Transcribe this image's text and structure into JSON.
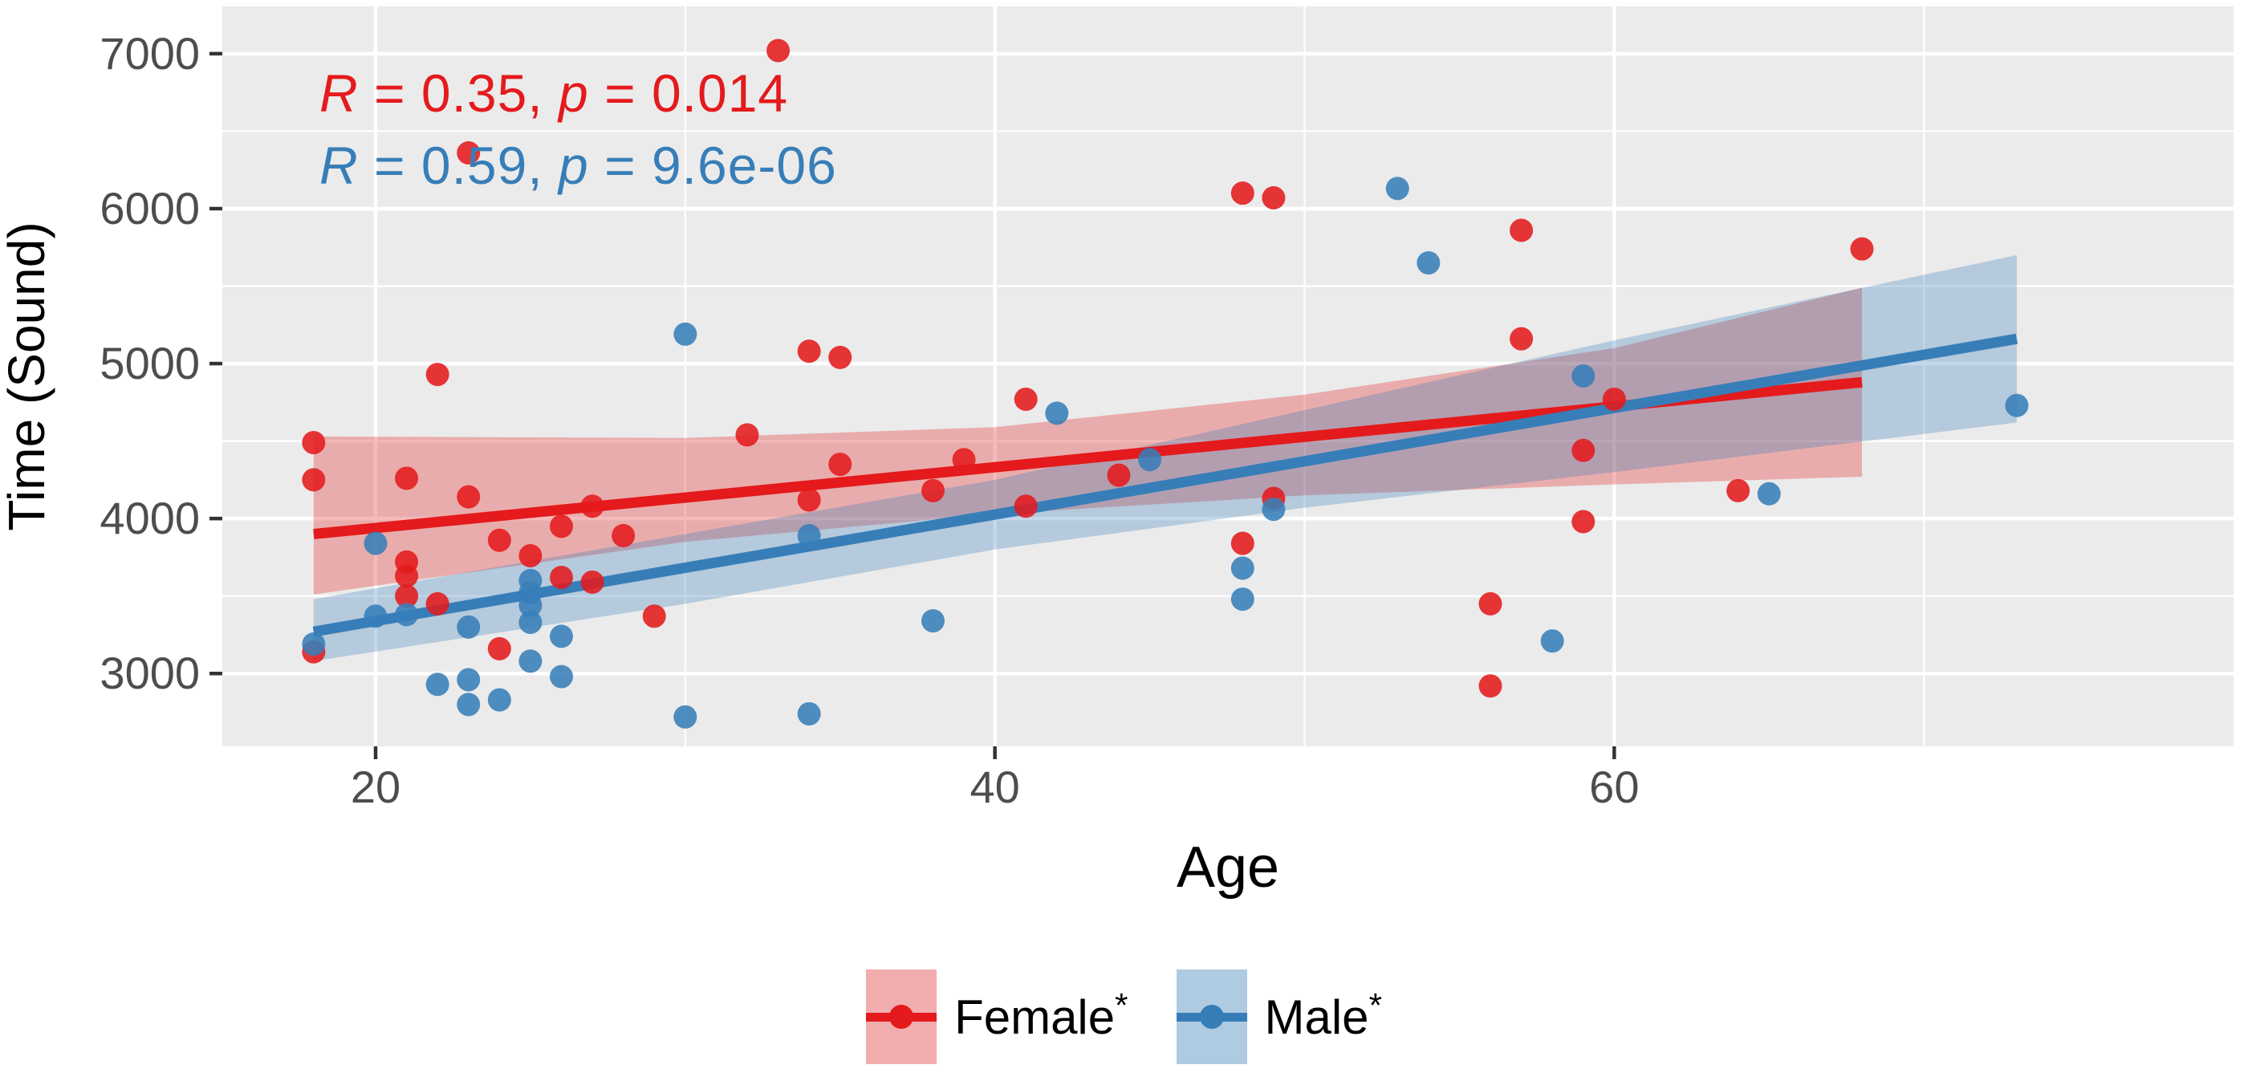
{
  "chart_data": {
    "type": "scatter",
    "title": "",
    "xlabel": "Age",
    "ylabel": "Time (Sound)",
    "xlim": [
      15.05,
      80.0
    ],
    "ylim": [
      2530,
      7305
    ],
    "x_ticks": [
      20,
      40,
      60
    ],
    "x_minor": [
      30,
      50,
      70
    ],
    "y_ticks": [
      3000,
      4000,
      5000,
      6000,
      7000
    ],
    "y_minor": [
      3500,
      4500,
      5500,
      6500
    ],
    "grid": "on",
    "panel_bg": "#EBEBEB",
    "grid_color": "#FFFFFF",
    "tick_label_color": "#4D4D4D",
    "legend_position": "bottom",
    "annotations": [
      {
        "r": "R",
        "r_rest": " = 0.35, ",
        "p": "p",
        "p_rest": " = 0.014",
        "color": "#E41A1C"
      },
      {
        "r": "R",
        "r_rest": " = 0.59, ",
        "p": "p",
        "p_rest": " = 9.6e-06",
        "color": "#377EB8"
      }
    ],
    "series": [
      {
        "name": "Female",
        "color": "#E41A1C",
        "ribbon_fill": "#E41A1C",
        "trend": {
          "x": [
            18,
            68
          ],
          "y": [
            3900,
            4880
          ]
        },
        "ribbon_upper": [
          [
            18,
            4530
          ],
          [
            30,
            4520
          ],
          [
            40,
            4590
          ],
          [
            50,
            4800
          ],
          [
            60,
            5100
          ],
          [
            68,
            5490
          ]
        ],
        "ribbon_lower": [
          [
            18,
            3510
          ],
          [
            30,
            3850
          ],
          [
            40,
            4030
          ],
          [
            50,
            4150
          ],
          [
            60,
            4220
          ],
          [
            68,
            4270
          ]
        ],
        "points": [
          [
            33,
            7020
          ],
          [
            23,
            6360
          ],
          [
            48,
            6100
          ],
          [
            49,
            6070
          ],
          [
            57,
            5860
          ],
          [
            68,
            5740
          ],
          [
            57,
            5160
          ],
          [
            34,
            5080
          ],
          [
            35,
            5040
          ],
          [
            22,
            4930
          ],
          [
            41,
            4770
          ],
          [
            60,
            4770
          ],
          [
            32,
            4540
          ],
          [
            18,
            4490
          ],
          [
            59,
            4440
          ],
          [
            39,
            4380
          ],
          [
            35,
            4350
          ],
          [
            44,
            4280
          ],
          [
            21,
            4260
          ],
          [
            18,
            4250
          ],
          [
            64,
            4180
          ],
          [
            38,
            4180
          ],
          [
            23,
            4140
          ],
          [
            49,
            4130
          ],
          [
            34,
            4120
          ],
          [
            41,
            4080
          ],
          [
            27,
            4080
          ],
          [
            59,
            3980
          ],
          [
            26,
            3950
          ],
          [
            28,
            3890
          ],
          [
            24,
            3860
          ],
          [
            48,
            3840
          ],
          [
            25,
            3760
          ],
          [
            21,
            3720
          ],
          [
            21,
            3630
          ],
          [
            26,
            3620
          ],
          [
            27,
            3590
          ],
          [
            21,
            3500
          ],
          [
            22,
            3450
          ],
          [
            56,
            3450
          ],
          [
            29,
            3370
          ],
          [
            24,
            3160
          ],
          [
            18,
            3140
          ],
          [
            56,
            2920
          ]
        ]
      },
      {
        "name": "Male",
        "color": "#377EB8",
        "ribbon_fill": "#377EB8",
        "trend": {
          "x": [
            18,
            73
          ],
          "y": [
            3270,
            5160
          ]
        },
        "ribbon_upper": [
          [
            18,
            3480
          ],
          [
            30,
            3900
          ],
          [
            40,
            4250
          ],
          [
            50,
            4700
          ],
          [
            60,
            5150
          ],
          [
            73,
            5700
          ]
        ],
        "ribbon_lower": [
          [
            18,
            3080
          ],
          [
            30,
            3450
          ],
          [
            40,
            3800
          ],
          [
            50,
            4070
          ],
          [
            60,
            4300
          ],
          [
            73,
            4620
          ]
        ],
        "points": [
          [
            53,
            6130
          ],
          [
            54,
            5650
          ],
          [
            30,
            5190
          ],
          [
            59,
            4920
          ],
          [
            73,
            4730
          ],
          [
            42,
            4680
          ],
          [
            45,
            4380
          ],
          [
            65,
            4160
          ],
          [
            49,
            4060
          ],
          [
            34,
            3890
          ],
          [
            20,
            3840
          ],
          [
            48,
            3680
          ],
          [
            25,
            3600
          ],
          [
            25,
            3520
          ],
          [
            48,
            3480
          ],
          [
            25,
            3440
          ],
          [
            21,
            3380
          ],
          [
            20,
            3370
          ],
          [
            38,
            3340
          ],
          [
            25,
            3330
          ],
          [
            23,
            3300
          ],
          [
            18,
            3190
          ],
          [
            26,
            3240
          ],
          [
            58,
            3210
          ],
          [
            25,
            3080
          ],
          [
            26,
            2980
          ],
          [
            23,
            2960
          ],
          [
            22,
            2930
          ],
          [
            24,
            2830
          ],
          [
            23,
            2800
          ],
          [
            30,
            2720
          ],
          [
            34,
            2740
          ]
        ]
      }
    ],
    "legend": {
      "items": [
        {
          "label": "Female",
          "sup": "*",
          "color": "#E41A1C",
          "key_bg": "#F2ADAE"
        },
        {
          "label": "Male",
          "sup": "*",
          "color": "#377EB8",
          "key_bg": "#AFCBE2"
        }
      ]
    }
  }
}
